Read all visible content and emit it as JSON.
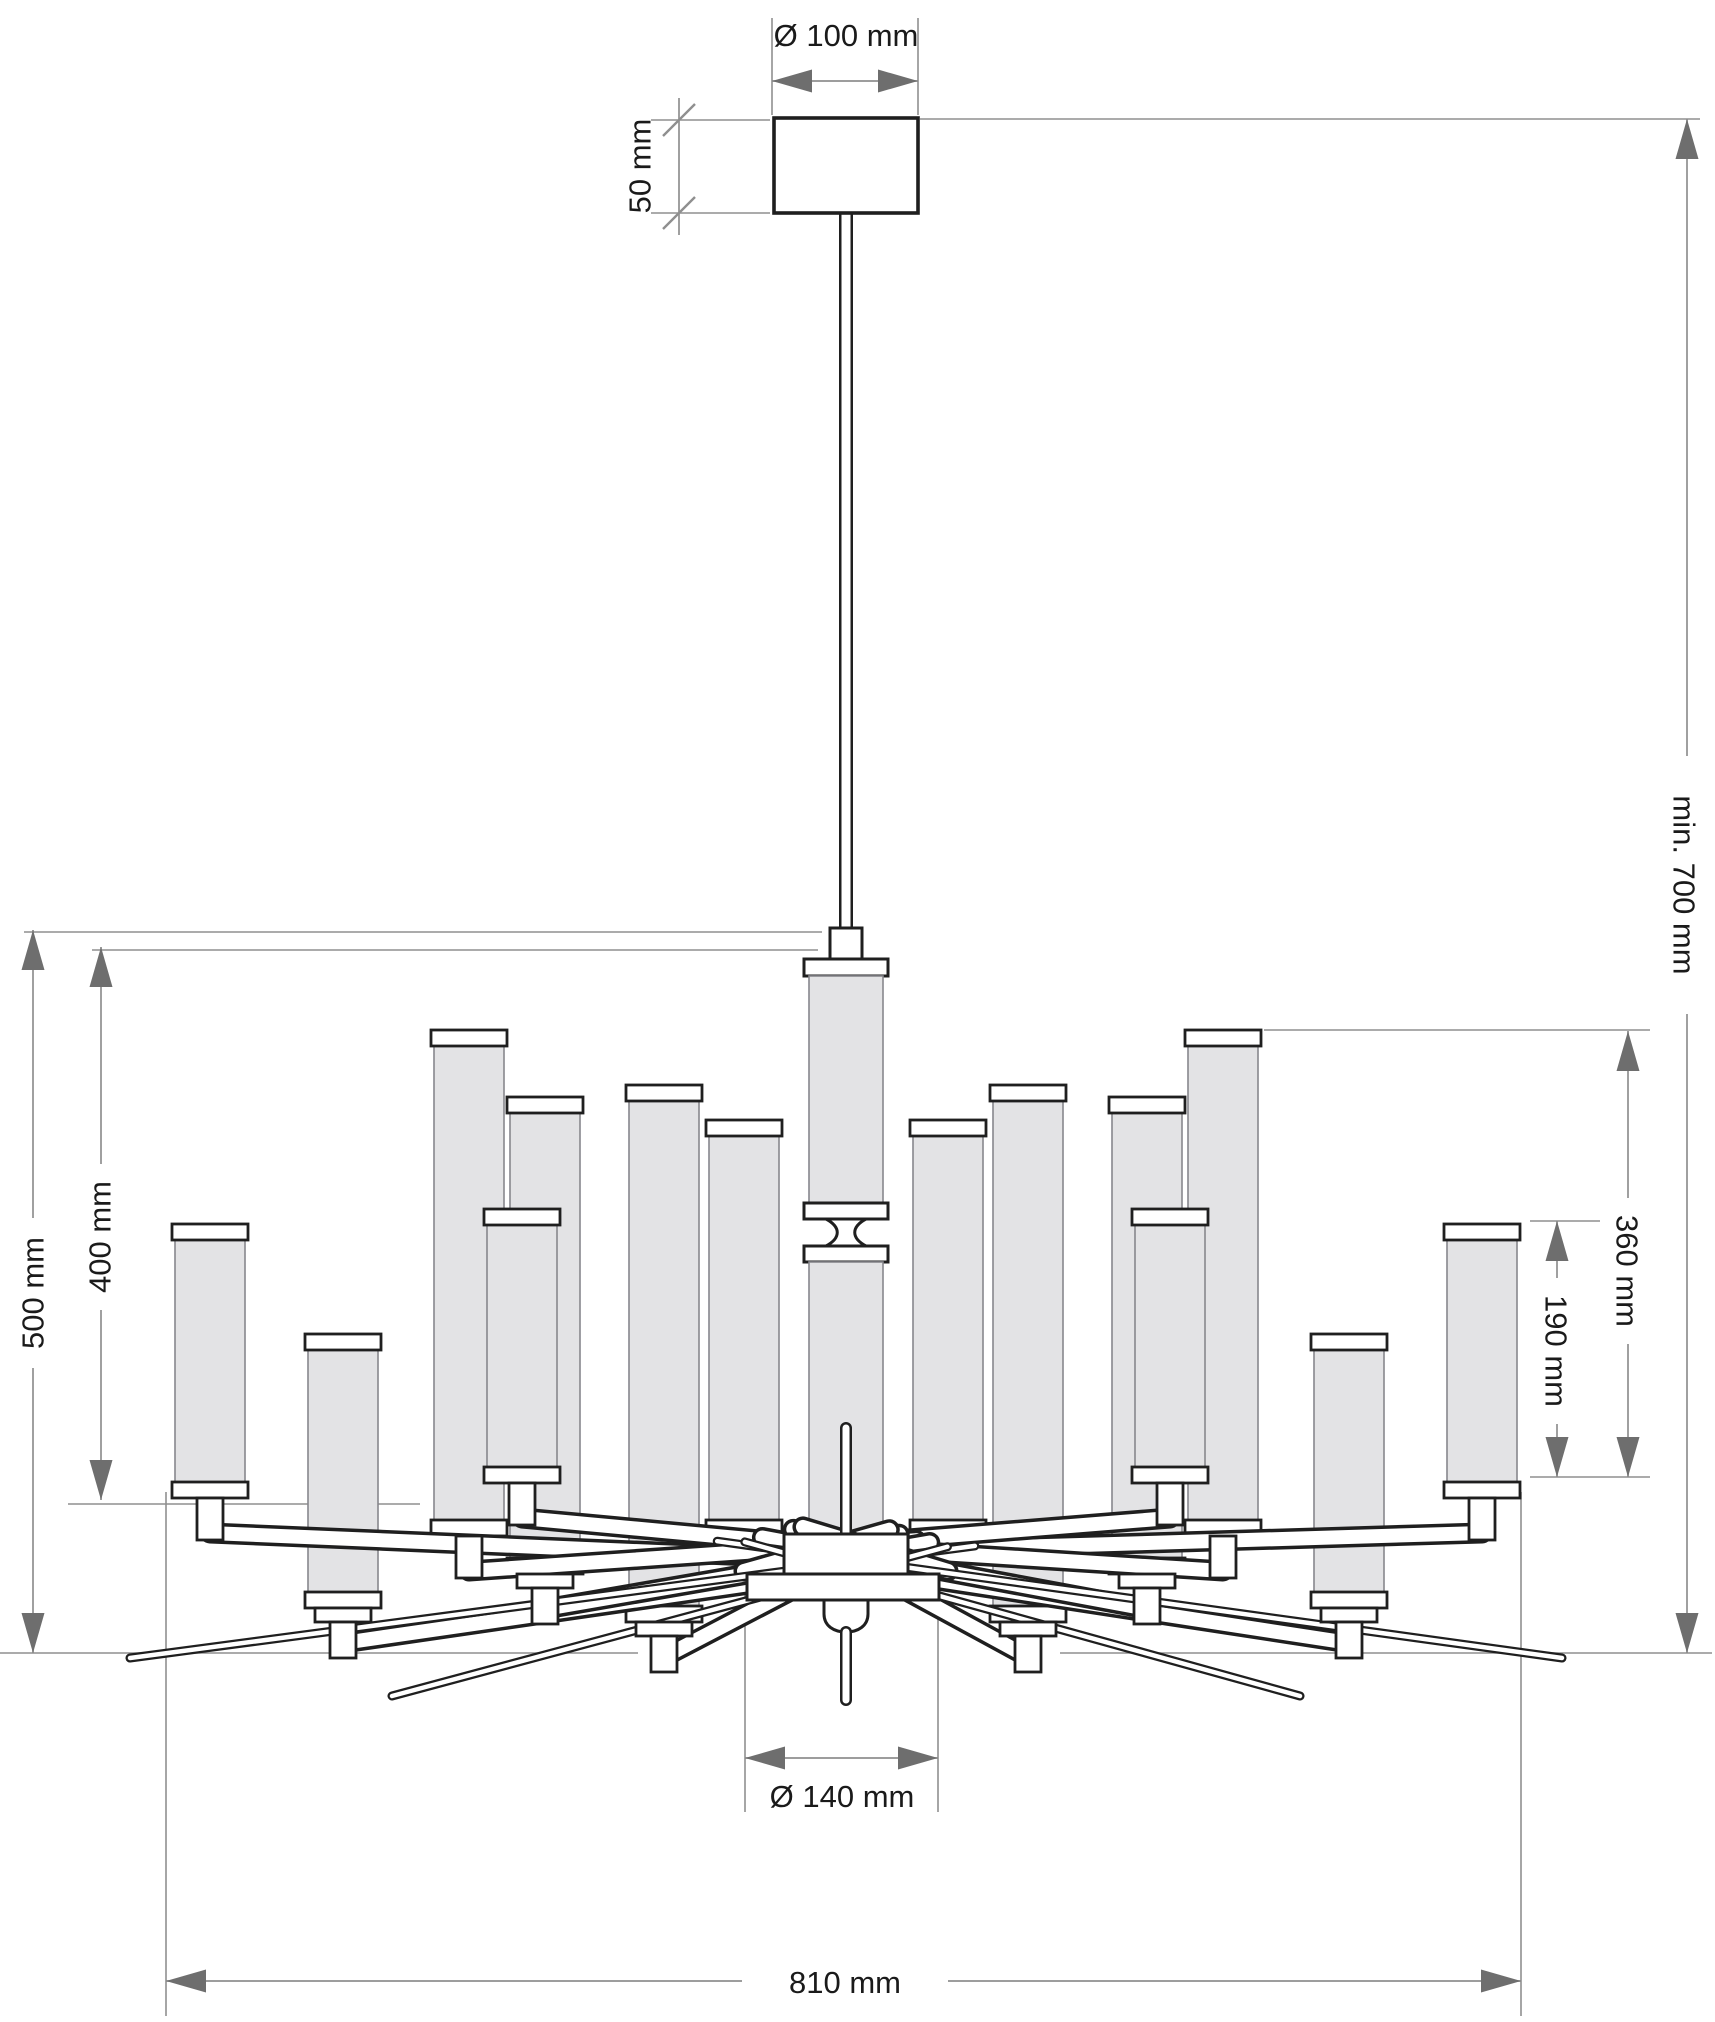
{
  "dimensions": {
    "canopy_diameter": {
      "label": "Ø 100 mm",
      "value": 100,
      "unit": "mm"
    },
    "canopy_height": {
      "label": "50 mm",
      "value": 50,
      "unit": "mm"
    },
    "min_suspension": {
      "label": "min. 700 mm",
      "value": 700,
      "unit": "mm",
      "qualifier": "min."
    },
    "body_height": {
      "label": "500 mm",
      "value": 500,
      "unit": "mm"
    },
    "inner_body_height": {
      "label": "400 mm",
      "value": 400,
      "unit": "mm"
    },
    "tall_shade_height": {
      "label": "360 mm",
      "value": 360,
      "unit": "mm"
    },
    "short_shade_height": {
      "label": "190 mm",
      "value": 190,
      "unit": "mm"
    },
    "hub_diameter": {
      "label": "Ø 140 mm",
      "value": 140,
      "unit": "mm"
    },
    "overall_width": {
      "label": "810 mm",
      "value": 810,
      "unit": "mm"
    }
  },
  "colors": {
    "background": "#ffffff",
    "outline": "#1f1f1f",
    "glass_fill": "#e3e3e5",
    "glass_edge": "#87878d",
    "dimension_line": "#8f8f8f",
    "arrowhead": "#6e6e6e",
    "label_text": "#1a1a1a"
  }
}
